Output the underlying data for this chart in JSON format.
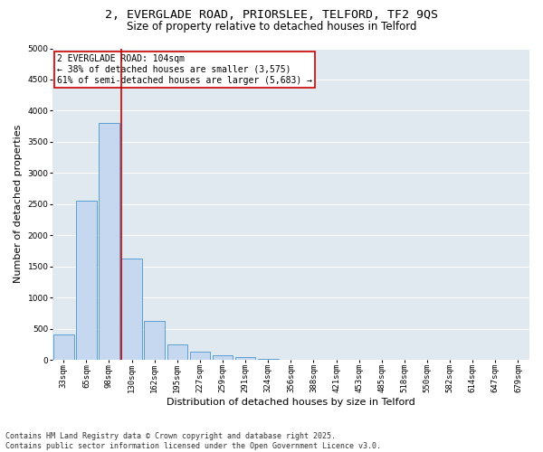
{
  "title_line1": "2, EVERGLADE ROAD, PRIORSLEE, TELFORD, TF2 9QS",
  "title_line2": "Size of property relative to detached houses in Telford",
  "xlabel": "Distribution of detached houses by size in Telford",
  "ylabel": "Number of detached properties",
  "categories": [
    "33sqm",
    "65sqm",
    "98sqm",
    "130sqm",
    "162sqm",
    "195sqm",
    "227sqm",
    "259sqm",
    "291sqm",
    "324sqm",
    "356sqm",
    "388sqm",
    "421sqm",
    "453sqm",
    "485sqm",
    "518sqm",
    "550sqm",
    "582sqm",
    "614sqm",
    "647sqm",
    "679sqm"
  ],
  "values": [
    400,
    2550,
    3800,
    1620,
    620,
    240,
    130,
    70,
    50,
    10,
    5,
    0,
    0,
    0,
    0,
    0,
    0,
    0,
    0,
    0,
    0
  ],
  "bar_color": "#c5d8f0",
  "bar_edge_color": "#5a9fd4",
  "vline_color": "#cc0000",
  "annotation_text": "2 EVERGLADE ROAD: 104sqm\n← 38% of detached houses are smaller (3,575)\n61% of semi-detached houses are larger (5,683) →",
  "box_color": "#cc0000",
  "ylim": [
    0,
    5000
  ],
  "yticks": [
    0,
    500,
    1000,
    1500,
    2000,
    2500,
    3000,
    3500,
    4000,
    4500,
    5000
  ],
  "background_color": "#e0e8f0",
  "grid_color": "#ffffff",
  "footer": "Contains HM Land Registry data © Crown copyright and database right 2025.\nContains public sector information licensed under the Open Government Licence v3.0.",
  "title_fontsize": 9.5,
  "subtitle_fontsize": 8.5,
  "axis_label_fontsize": 8,
  "tick_fontsize": 6.5,
  "annotation_fontsize": 7,
  "footer_fontsize": 6
}
